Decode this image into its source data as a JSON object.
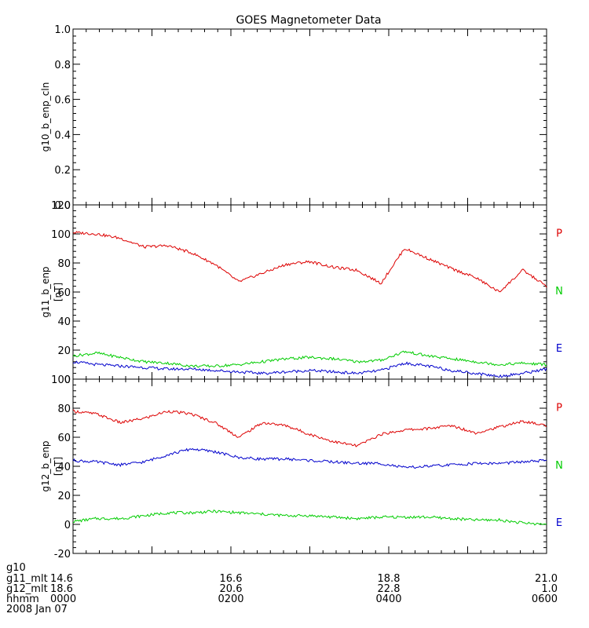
{
  "chart_data": [
    {
      "type": "line",
      "title": "GOES Magnetometer Data",
      "ylabel": "g10_b_enp_cln",
      "yunit": "",
      "ylim": [
        0,
        1.0
      ],
      "yticks": [
        "0.0",
        "0.2",
        "0.4",
        "0.6",
        "0.8",
        "1.0"
      ],
      "series": []
    },
    {
      "type": "line",
      "ylabel": "g11_b_enp",
      "yunit": "[nT]",
      "ylim": [
        0,
        120
      ],
      "yticks": [
        "0",
        "20",
        "40",
        "60",
        "80",
        "100",
        "120"
      ],
      "series": [
        {
          "name": "P",
          "color": "#dd0000",
          "x": [
            0,
            0.3,
            0.6,
            0.9,
            1.2,
            1.5,
            1.8,
            2.1,
            2.4,
            2.7,
            3.0,
            3.3,
            3.6,
            3.9,
            4.2,
            4.5,
            4.8,
            5.1,
            5.4,
            5.7,
            6.0
          ],
          "values": [
            101,
            100,
            97,
            91,
            92,
            87,
            79,
            67,
            73,
            79,
            81,
            77,
            75,
            66,
            90,
            83,
            76,
            70,
            60,
            75,
            64
          ]
        },
        {
          "name": "N",
          "color": "#00cc00",
          "x": [
            0,
            0.3,
            0.6,
            0.9,
            1.2,
            1.5,
            1.8,
            2.1,
            2.4,
            2.7,
            3.0,
            3.3,
            3.6,
            3.9,
            4.2,
            4.5,
            4.8,
            5.1,
            5.4,
            5.7,
            6.0
          ],
          "values": [
            16,
            18,
            15,
            12,
            11,
            9,
            9,
            10,
            12,
            14,
            15,
            14,
            12,
            13,
            19,
            16,
            14,
            12,
            10,
            11,
            10
          ]
        },
        {
          "name": "E",
          "color": "#0000cc",
          "x": [
            0,
            0.3,
            0.6,
            0.9,
            1.2,
            1.5,
            1.8,
            2.1,
            2.4,
            2.7,
            3.0,
            3.3,
            3.6,
            3.9,
            4.2,
            4.5,
            4.8,
            5.1,
            5.4,
            5.7,
            6.0
          ],
          "values": [
            12,
            10,
            9,
            8,
            7,
            7,
            6,
            5,
            4,
            5,
            6,
            5,
            4,
            6,
            11,
            9,
            6,
            4,
            2,
            4,
            7
          ]
        }
      ]
    },
    {
      "type": "line",
      "ylabel": "g12_b_enp",
      "yunit": "[nT]",
      "ylim": [
        -20,
        100
      ],
      "yticks": [
        "-20",
        "0",
        "20",
        "40",
        "60",
        "80",
        "100"
      ],
      "series": [
        {
          "name": "P",
          "color": "#dd0000",
          "x": [
            0,
            0.3,
            0.6,
            0.9,
            1.2,
            1.5,
            1.8,
            2.1,
            2.4,
            2.7,
            3.0,
            3.3,
            3.6,
            3.9,
            4.2,
            4.5,
            4.8,
            5.1,
            5.4,
            5.7,
            6.0
          ],
          "values": [
            78,
            76,
            70,
            73,
            78,
            76,
            70,
            60,
            70,
            68,
            62,
            57,
            54,
            62,
            65,
            66,
            68,
            63,
            67,
            71,
            68
          ]
        },
        {
          "name": "N",
          "color": "#00cc00",
          "x": [
            0,
            0.3,
            0.6,
            0.9,
            1.2,
            1.5,
            1.8,
            2.1,
            2.4,
            2.7,
            3.0,
            3.3,
            3.6,
            3.9,
            4.2,
            4.5,
            4.8,
            5.1,
            5.4,
            5.7,
            6.0
          ],
          "values": [
            2,
            4,
            4,
            6,
            8,
            8,
            9,
            8,
            7,
            6,
            6,
            5,
            4,
            5,
            5,
            5,
            4,
            3,
            3,
            1,
            0
          ]
        },
        {
          "name": "E",
          "color": "#0000cc",
          "x": [
            0,
            0.3,
            0.6,
            0.9,
            1.2,
            1.5,
            1.8,
            2.1,
            2.4,
            2.7,
            3.0,
            3.3,
            3.6,
            3.9,
            4.2,
            4.5,
            4.8,
            5.1,
            5.4,
            5.7,
            6.0
          ],
          "values": [
            44,
            43,
            41,
            43,
            48,
            52,
            50,
            46,
            45,
            45,
            44,
            43,
            42,
            42,
            39,
            40,
            41,
            42,
            42,
            43,
            44
          ]
        }
      ]
    }
  ],
  "xaxis": {
    "range": [
      0,
      6
    ],
    "tick_x": [
      0,
      2,
      4,
      6
    ],
    "rows": [
      {
        "label": "g10",
        "values": [
          "",
          "",
          "",
          ""
        ]
      },
      {
        "label": "g11_mlt",
        "values": [
          "14.6",
          "16.6",
          "18.8",
          "21.0"
        ]
      },
      {
        "label": "g12_mlt",
        "values": [
          "18.6",
          "20.6",
          "22.8",
          "1.0"
        ]
      },
      {
        "label": "hhmm",
        "values": [
          "0000",
          "0200",
          "0400",
          "0600"
        ]
      }
    ],
    "date": "2008 Jan 07"
  }
}
